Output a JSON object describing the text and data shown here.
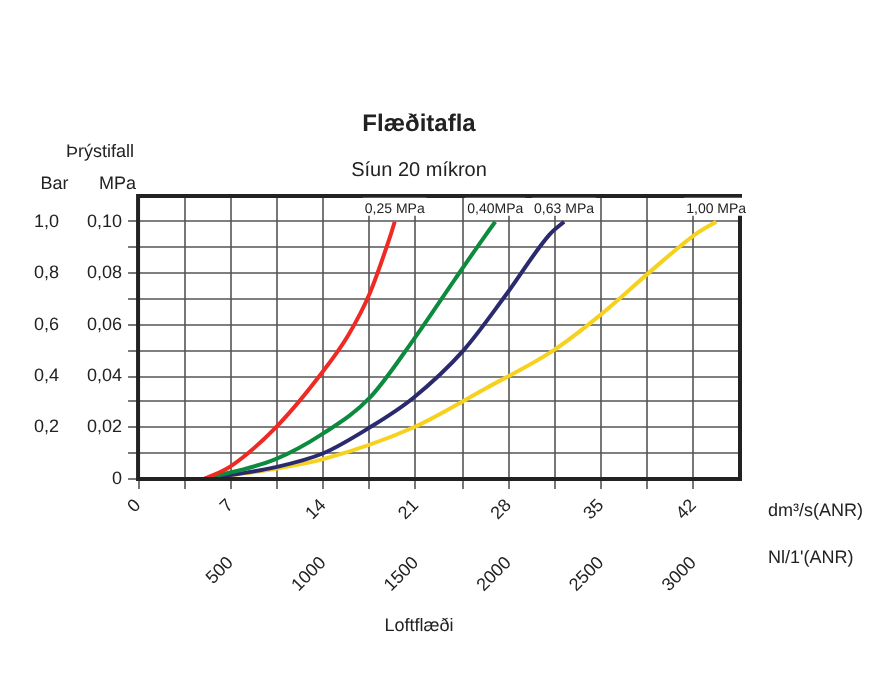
{
  "chart_data": {
    "type": "line",
    "title": "Flæðitafla",
    "subtitle": "Síun 20 míkron",
    "xlabel": "dm³/s(ANR)",
    "x2label": "Nl/1'(ANR)",
    "ylabel": "MPa",
    "y2label": "Bar",
    "annotations": [
      "Þrýstifall",
      "Loftflæði"
    ],
    "series": [
      {
        "name": "0,25 MPa",
        "color": "#ee2a24",
        "x": [
          5.0,
          6.9,
          10.4,
          14.0,
          15.9,
          17.5,
          19.1,
          19.4
        ],
        "values": [
          0,
          0.0046,
          0.02,
          0.042,
          0.056,
          0.072,
          0.095,
          0.1
        ]
      },
      {
        "name": "0,40MPa",
        "color": "#0c8a3e",
        "x": [
          5.0,
          10.4,
          14.0,
          17.5,
          20.8,
          24.0,
          26.3,
          27.0
        ],
        "values": [
          0,
          0.0077,
          0.0177,
          0.0315,
          0.054,
          0.078,
          0.095,
          0.1
        ]
      },
      {
        "name": "0,63 MPa",
        "color": "#2b2a6e",
        "x": [
          5.0,
          10.4,
          14.0,
          17.5,
          20.8,
          24.6,
          27.8,
          31.1,
          32.2
        ],
        "values": [
          0,
          0.0046,
          0.01,
          0.02,
          0.0315,
          0.05,
          0.0715,
          0.095,
          0.1
        ]
      },
      {
        "name": "1,00 MPa",
        "color": "#f6d21e",
        "x": [
          5.0,
          10.4,
          14.0,
          20.8,
          26.2,
          31.4,
          35.0,
          38.8,
          42.1,
          43.7
        ],
        "values": [
          0,
          0.004,
          0.0077,
          0.02,
          0.035,
          0.05,
          0.064,
          0.081,
          0.095,
          0.1
        ]
      }
    ],
    "xlim": [
      0,
      45.5
    ],
    "xticks": [
      0,
      {
        "value": 3.5,
        "label": null
      },
      7,
      {
        "value": 10.5,
        "label": null
      },
      14,
      {
        "value": 17.5,
        "label": null
      },
      21,
      {
        "value": 24.5,
        "label": null
      },
      28,
      {
        "value": 31.5,
        "label": null
      },
      35,
      {
        "value": 38.5,
        "label": null
      },
      42
    ],
    "x2lim": [
      0,
      3250
    ],
    "x2ticks": [
      500,
      1000,
      1500,
      2000,
      2500,
      3000
    ],
    "ylim": [
      0,
      0.11
    ],
    "yticks": [
      0,
      {
        "value": 0.01,
        "label": null
      },
      {
        "value": 0.02,
        "label": "0,02"
      },
      {
        "value": 0.03,
        "label": null
      },
      {
        "value": 0.04,
        "label": "0,04"
      },
      {
        "value": 0.05,
        "label": null
      },
      {
        "value": 0.06,
        "label": "0,06"
      },
      {
        "value": 0.07,
        "label": null
      },
      {
        "value": 0.08,
        "label": "0,08"
      },
      {
        "value": 0.09,
        "label": null
      },
      {
        "value": 0.1,
        "label": "0,10"
      }
    ],
    "y2lim": [
      0,
      1.1
    ],
    "y2ticks": [
      {
        "value": 0,
        "label": null
      },
      {
        "value": 0.2,
        "label": "0,2"
      },
      {
        "value": 0.4,
        "label": "0,4"
      },
      {
        "value": 0.6,
        "label": "0,6"
      },
      {
        "value": 0.8,
        "label": "0,8"
      },
      {
        "value": 1.0,
        "label": "1,0"
      }
    ],
    "grid": true
  }
}
